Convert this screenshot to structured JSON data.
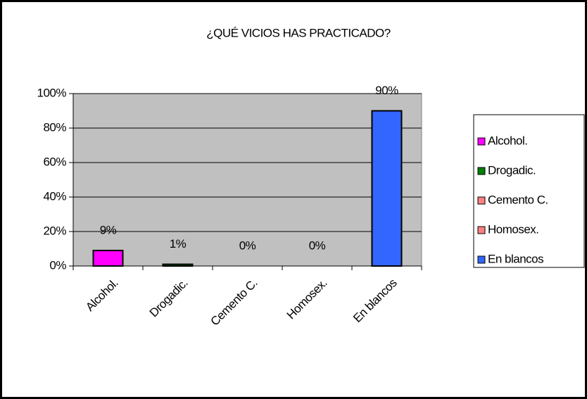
{
  "chart_data": {
    "type": "bar",
    "title": "¿QUÉ VICIOS HAS PRACTICADO?",
    "categories": [
      "Alcohol.",
      "Drogadic.",
      "Cemento C.",
      "Homosex.",
      "En blancos"
    ],
    "values": [
      9,
      1,
      0,
      0,
      90
    ],
    "value_labels": [
      "9%",
      "1%",
      "0%",
      "0%",
      "90%"
    ],
    "colors": [
      "#ff00ff",
      "#008000",
      "#ff8080",
      "#ff8080",
      "#3366ff"
    ],
    "ylim": [
      0,
      100
    ],
    "yticks": [
      {
        "value": 0,
        "label": "0%"
      },
      {
        "value": 20,
        "label": "20%"
      },
      {
        "value": 40,
        "label": "40%"
      },
      {
        "value": 60,
        "label": "60%"
      },
      {
        "value": 80,
        "label": "80%"
      },
      {
        "value": 100,
        "label": "100%"
      }
    ],
    "grid": true,
    "legend": "right"
  }
}
